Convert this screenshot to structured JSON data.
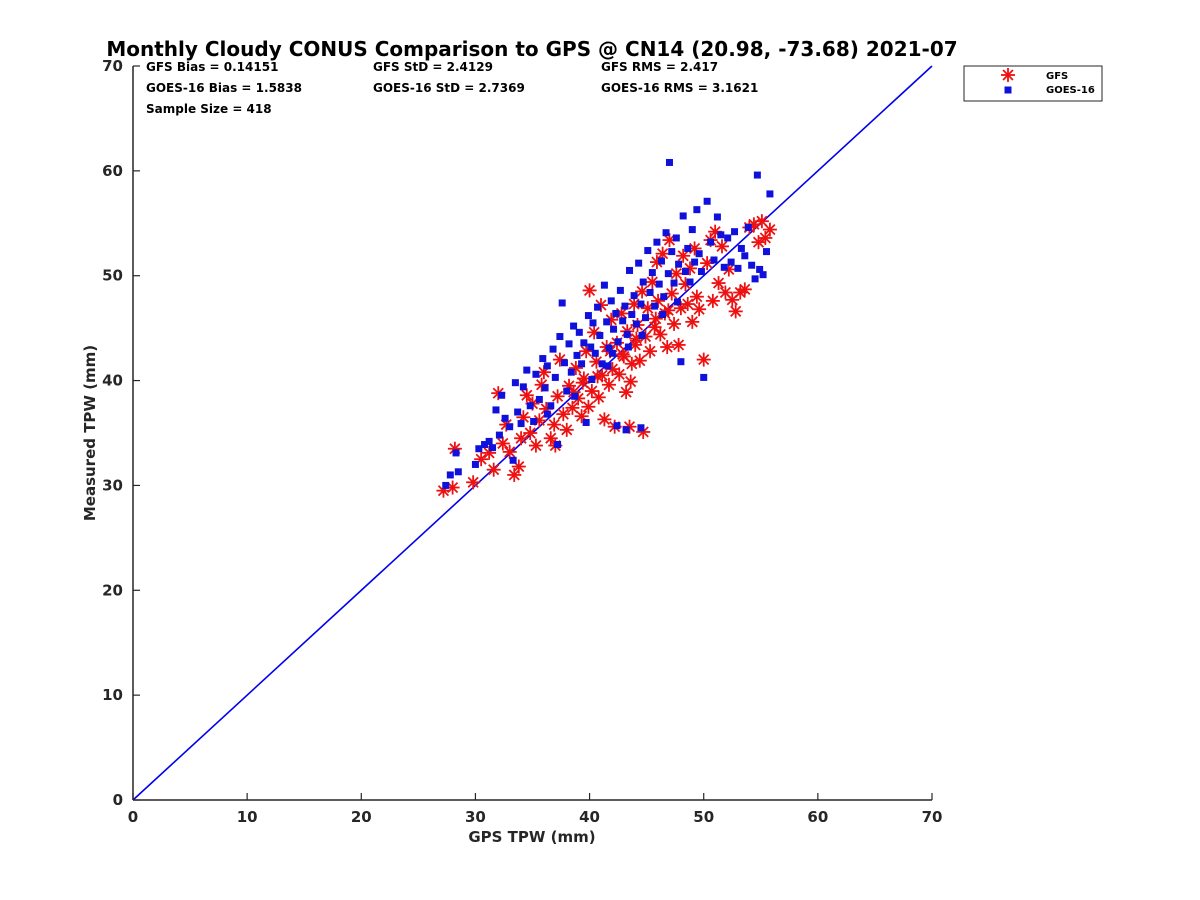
{
  "chart_data": {
    "type": "scatter",
    "title": "Monthly Cloudy CONUS Comparison to GPS @ CN14 (20.98, -73.68) 2021-07",
    "xlabel": "GPS TPW (mm)",
    "ylabel": "Measured TPW (mm)",
    "xlim": [
      0,
      70
    ],
    "ylim": [
      0,
      70
    ],
    "xticks": [
      "0",
      "10",
      "20",
      "30",
      "40",
      "50",
      "60",
      "70"
    ],
    "yticks": [
      "0",
      "10",
      "20",
      "30",
      "40",
      "50",
      "60",
      "70"
    ],
    "stats": {
      "gfs_bias": "GFS Bias = 0.14151",
      "goes_bias": "GOES-16 Bias = 1.5838",
      "sample_size": "Sample Size = 418",
      "gfs_std": "GFS StD = 2.4129",
      "goes_std": "GOES-16 StD = 2.7369",
      "gfs_rms": "GFS RMS = 2.417",
      "goes_rms": "GOES-16 RMS = 3.1621"
    },
    "legend_position": "top-right, outside plot",
    "reference_line": {
      "name": "1:1 line",
      "x": [
        0,
        70
      ],
      "y": [
        0,
        70
      ],
      "color": "#0000ee"
    },
    "series": [
      {
        "name": "GFS",
        "marker": "asterisk",
        "color": "#ee1111",
        "points": [
          [
            27.2,
            29.5
          ],
          [
            28.0,
            29.8
          ],
          [
            28.2,
            33.5
          ],
          [
            29.8,
            30.3
          ],
          [
            30.5,
            32.5
          ],
          [
            31.2,
            33.1
          ],
          [
            31.6,
            31.5
          ],
          [
            32.0,
            38.8
          ],
          [
            32.4,
            34.0
          ],
          [
            32.7,
            35.8
          ],
          [
            33.0,
            33.2
          ],
          [
            33.4,
            31.0
          ],
          [
            33.8,
            31.8
          ],
          [
            34.0,
            34.5
          ],
          [
            34.2,
            36.5
          ],
          [
            34.5,
            38.6
          ],
          [
            34.8,
            35.0
          ],
          [
            35.0,
            37.8
          ],
          [
            35.3,
            33.8
          ],
          [
            35.6,
            36.2
          ],
          [
            35.8,
            39.6
          ],
          [
            36.0,
            40.8
          ],
          [
            36.2,
            37.3
          ],
          [
            36.6,
            34.5
          ],
          [
            36.9,
            35.8
          ],
          [
            37.0,
            33.8
          ],
          [
            37.2,
            38.5
          ],
          [
            37.4,
            42.0
          ],
          [
            37.7,
            36.8
          ],
          [
            38.0,
            35.3
          ],
          [
            38.2,
            39.5
          ],
          [
            38.5,
            37.4
          ],
          [
            38.8,
            41.2
          ],
          [
            39.0,
            38.3
          ],
          [
            39.3,
            36.6
          ],
          [
            39.5,
            40.2
          ],
          [
            39.7,
            42.8
          ],
          [
            39.9,
            37.5
          ],
          [
            40.0,
            48.6
          ],
          [
            40.2,
            39.0
          ],
          [
            40.4,
            44.6
          ],
          [
            40.6,
            41.8
          ],
          [
            40.8,
            38.4
          ],
          [
            41.0,
            47.2
          ],
          [
            41.1,
            40.5
          ],
          [
            41.3,
            36.3
          ],
          [
            41.5,
            43.2
          ],
          [
            41.7,
            39.6
          ],
          [
            41.9,
            45.8
          ],
          [
            42.0,
            41.1
          ],
          [
            42.2,
            35.6
          ],
          [
            42.4,
            43.6
          ],
          [
            42.6,
            40.6
          ],
          [
            42.8,
            46.4
          ],
          [
            43.0,
            42.3
          ],
          [
            43.2,
            38.9
          ],
          [
            43.3,
            44.7
          ],
          [
            43.5,
            35.6
          ],
          [
            43.7,
            41.6
          ],
          [
            43.9,
            47.3
          ],
          [
            44.0,
            43.4
          ],
          [
            44.2,
            45.3
          ],
          [
            44.4,
            41.9
          ],
          [
            44.6,
            48.5
          ],
          [
            44.7,
            35.1
          ],
          [
            44.9,
            44.2
          ],
          [
            45.1,
            46.9
          ],
          [
            45.3,
            42.8
          ],
          [
            45.5,
            49.4
          ],
          [
            45.7,
            45.1
          ],
          [
            45.9,
            51.3
          ],
          [
            46.0,
            47.6
          ],
          [
            46.2,
            44.4
          ],
          [
            46.4,
            52.1
          ],
          [
            46.6,
            46.4
          ],
          [
            46.8,
            43.2
          ],
          [
            47.0,
            53.4
          ],
          [
            47.2,
            48.3
          ],
          [
            47.4,
            45.4
          ],
          [
            47.6,
            50.2
          ],
          [
            47.8,
            43.4
          ],
          [
            48.0,
            46.9
          ],
          [
            48.2,
            51.9
          ],
          [
            48.4,
            49.2
          ],
          [
            48.6,
            47.3
          ],
          [
            48.8,
            50.7
          ],
          [
            49.0,
            45.6
          ],
          [
            49.2,
            52.6
          ],
          [
            49.4,
            48.0
          ],
          [
            49.6,
            46.8
          ],
          [
            50.0,
            42.0
          ],
          [
            50.3,
            51.2
          ],
          [
            50.6,
            53.4
          ],
          [
            50.8,
            47.6
          ],
          [
            51.0,
            54.2
          ],
          [
            51.3,
            49.3
          ],
          [
            51.6,
            52.8
          ],
          [
            51.9,
            48.4
          ],
          [
            52.2,
            50.6
          ],
          [
            52.5,
            47.7
          ],
          [
            52.8,
            46.6
          ],
          [
            53.2,
            48.4
          ],
          [
            53.6,
            48.7
          ],
          [
            54.0,
            54.6
          ],
          [
            54.4,
            54.9
          ],
          [
            54.8,
            53.2
          ],
          [
            55.1,
            55.2
          ],
          [
            55.4,
            53.6
          ],
          [
            55.8,
            54.4
          ],
          [
            39.4,
            39.8
          ],
          [
            40.7,
            40.4
          ],
          [
            42.9,
            42.5
          ],
          [
            44.1,
            44.0
          ],
          [
            45.8,
            45.9
          ],
          [
            46.9,
            46.7
          ],
          [
            43.6,
            39.9
          ],
          [
            41.8,
            42.8
          ],
          [
            38.6,
            38.9
          ]
        ]
      },
      {
        "name": "GOES-16",
        "marker": "square",
        "color": "#1010dd",
        "points": [
          [
            27.4,
            30.0
          ],
          [
            27.8,
            31.0
          ],
          [
            28.3,
            33.1
          ],
          [
            28.5,
            31.3
          ],
          [
            30.0,
            32.0
          ],
          [
            30.3,
            33.5
          ],
          [
            30.8,
            33.9
          ],
          [
            31.2,
            34.2
          ],
          [
            31.5,
            33.6
          ],
          [
            31.8,
            37.2
          ],
          [
            32.1,
            34.8
          ],
          [
            32.3,
            38.6
          ],
          [
            32.6,
            36.4
          ],
          [
            33.0,
            35.6
          ],
          [
            33.3,
            32.4
          ],
          [
            33.5,
            39.8
          ],
          [
            33.7,
            37.0
          ],
          [
            34.0,
            35.9
          ],
          [
            34.2,
            39.4
          ],
          [
            34.5,
            41.0
          ],
          [
            34.8,
            37.6
          ],
          [
            35.1,
            36.1
          ],
          [
            35.3,
            40.6
          ],
          [
            35.6,
            38.2
          ],
          [
            35.9,
            42.1
          ],
          [
            36.1,
            39.3
          ],
          [
            36.3,
            41.4
          ],
          [
            36.6,
            37.6
          ],
          [
            36.8,
            43.0
          ],
          [
            37.0,
            40.3
          ],
          [
            37.2,
            33.9
          ],
          [
            37.4,
            44.2
          ],
          [
            37.6,
            47.4
          ],
          [
            37.8,
            41.7
          ],
          [
            38.0,
            39.0
          ],
          [
            38.2,
            43.5
          ],
          [
            38.4,
            40.8
          ],
          [
            38.6,
            45.2
          ],
          [
            38.9,
            42.4
          ],
          [
            39.1,
            44.6
          ],
          [
            39.3,
            41.6
          ],
          [
            39.5,
            43.6
          ],
          [
            39.7,
            36.0
          ],
          [
            39.9,
            46.2
          ],
          [
            40.1,
            43.2
          ],
          [
            40.3,
            45.5
          ],
          [
            40.5,
            42.6
          ],
          [
            40.7,
            47.0
          ],
          [
            40.9,
            44.3
          ],
          [
            41.1,
            41.6
          ],
          [
            41.3,
            49.1
          ],
          [
            41.5,
            45.6
          ],
          [
            41.7,
            43.1
          ],
          [
            41.9,
            47.6
          ],
          [
            42.1,
            44.9
          ],
          [
            42.3,
            46.4
          ],
          [
            42.5,
            43.7
          ],
          [
            42.7,
            48.6
          ],
          [
            42.9,
            45.7
          ],
          [
            43.1,
            47.1
          ],
          [
            43.3,
            44.4
          ],
          [
            43.5,
            50.5
          ],
          [
            43.7,
            46.3
          ],
          [
            43.9,
            48.1
          ],
          [
            44.1,
            45.4
          ],
          [
            44.3,
            51.2
          ],
          [
            44.5,
            47.3
          ],
          [
            44.7,
            49.4
          ],
          [
            44.9,
            46.0
          ],
          [
            45.1,
            52.4
          ],
          [
            45.3,
            48.4
          ],
          [
            45.5,
            50.3
          ],
          [
            45.7,
            47.1
          ],
          [
            45.9,
            53.2
          ],
          [
            46.1,
            49.2
          ],
          [
            46.3,
            51.4
          ],
          [
            46.5,
            48.0
          ],
          [
            46.7,
            54.1
          ],
          [
            46.9,
            50.2
          ],
          [
            47.0,
            60.8
          ],
          [
            47.2,
            52.3
          ],
          [
            47.4,
            49.3
          ],
          [
            47.6,
            53.6
          ],
          [
            47.8,
            51.1
          ],
          [
            48.0,
            41.8
          ],
          [
            48.2,
            55.7
          ],
          [
            48.4,
            50.4
          ],
          [
            48.6,
            52.6
          ],
          [
            48.8,
            49.4
          ],
          [
            49.0,
            54.4
          ],
          [
            49.2,
            51.3
          ],
          [
            49.4,
            56.3
          ],
          [
            49.6,
            52.1
          ],
          [
            49.8,
            50.4
          ],
          [
            50.0,
            40.3
          ],
          [
            50.3,
            57.1
          ],
          [
            50.6,
            53.2
          ],
          [
            50.9,
            51.5
          ],
          [
            51.2,
            55.6
          ],
          [
            51.5,
            53.9
          ],
          [
            51.8,
            50.8
          ],
          [
            52.1,
            53.6
          ],
          [
            52.4,
            51.3
          ],
          [
            52.7,
            54.2
          ],
          [
            53.0,
            50.7
          ],
          [
            53.3,
            52.6
          ],
          [
            53.6,
            51.9
          ],
          [
            53.9,
            54.6
          ],
          [
            54.2,
            51.0
          ],
          [
            54.5,
            49.7
          ],
          [
            54.7,
            59.6
          ],
          [
            54.9,
            50.6
          ],
          [
            55.2,
            50.1
          ],
          [
            55.5,
            52.3
          ],
          [
            55.8,
            57.8
          ],
          [
            40.2,
            40.1
          ],
          [
            41.6,
            41.4
          ],
          [
            43.4,
            43.2
          ],
          [
            44.6,
            44.3
          ],
          [
            42.0,
            42.6
          ],
          [
            36.3,
            36.8
          ],
          [
            38.7,
            38.5
          ],
          [
            46.4,
            46.3
          ],
          [
            47.7,
            47.5
          ],
          [
            43.2,
            35.3
          ],
          [
            42.4,
            35.7
          ],
          [
            44.5,
            35.5
          ]
        ]
      }
    ]
  }
}
